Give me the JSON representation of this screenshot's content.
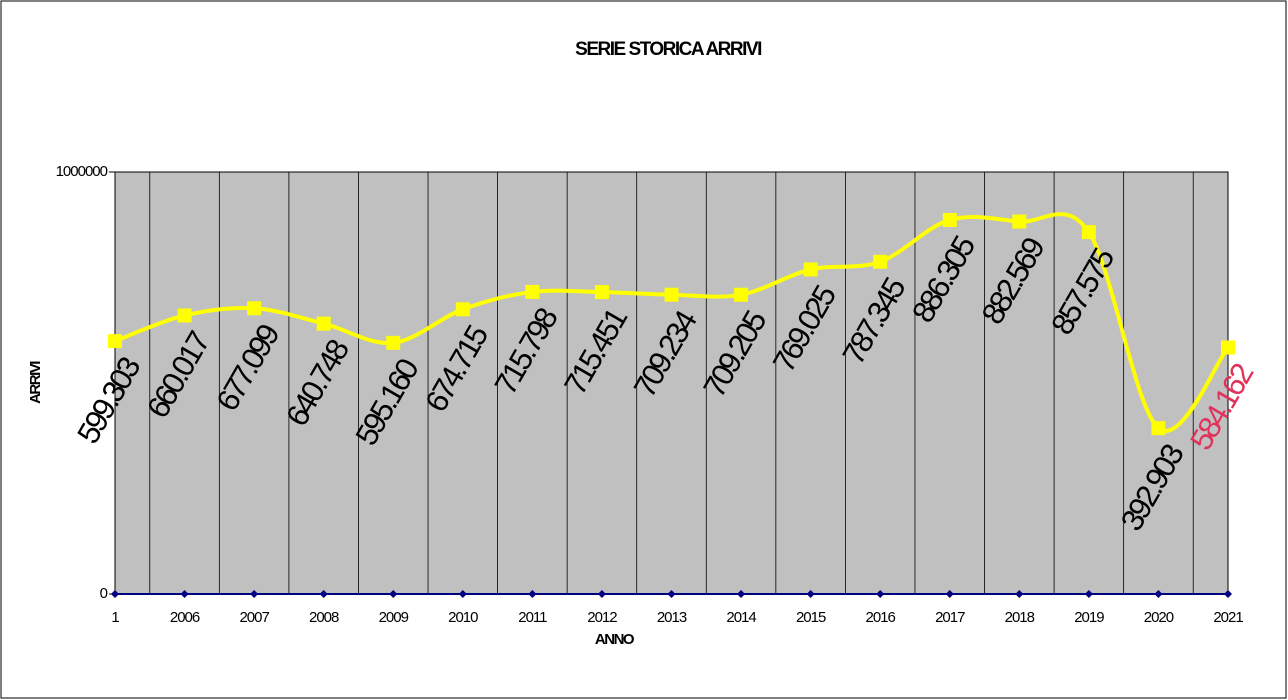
{
  "chart_data": {
    "type": "line",
    "title": "SERIE STORICA ARRIVI",
    "xlabel": "ANNO",
    "ylabel": "ARRIVI",
    "categories": [
      "1",
      "2006",
      "2007",
      "2008",
      "2009",
      "2010",
      "2011",
      "2012",
      "2013",
      "2014",
      "2015",
      "2016",
      "2017",
      "2018",
      "2019",
      "2020",
      "2021"
    ],
    "series": [
      {
        "color": "#ffff00",
        "values": [
          599303,
          660017,
          677099,
          640748,
          595160,
          674715,
          715798,
          715451,
          709234,
          709205,
          769025,
          787345,
          886305,
          882569,
          857575,
          392903,
          584162
        ],
        "value_labels": [
          "599.303",
          "660.017",
          "677.099",
          "640.748",
          "595.160",
          "674.715",
          "715.798",
          "715.451",
          "709.234",
          "709.205",
          "769.025",
          "787.345",
          "886.305",
          "882.569",
          "857.575",
          "392.903",
          "584.162"
        ],
        "label_colors": [
          "#000000",
          "#000000",
          "#000000",
          "#000000",
          "#000000",
          "#000000",
          "#000000",
          "#000000",
          "#000000",
          "#000000",
          "#000000",
          "#000000",
          "#000000",
          "#000000",
          "#000000",
          "#000000",
          "#e0325a"
        ]
      },
      {
        "color": "#000080",
        "values": [
          0,
          0,
          0,
          0,
          0,
          0,
          0,
          0,
          0,
          0,
          0,
          0,
          0,
          0,
          0,
          0,
          0
        ]
      }
    ],
    "ylim": [
      0,
      1000000
    ],
    "yticks": [
      0,
      1000000
    ],
    "plot_background": "#c0c0c0",
    "grid": true
  }
}
